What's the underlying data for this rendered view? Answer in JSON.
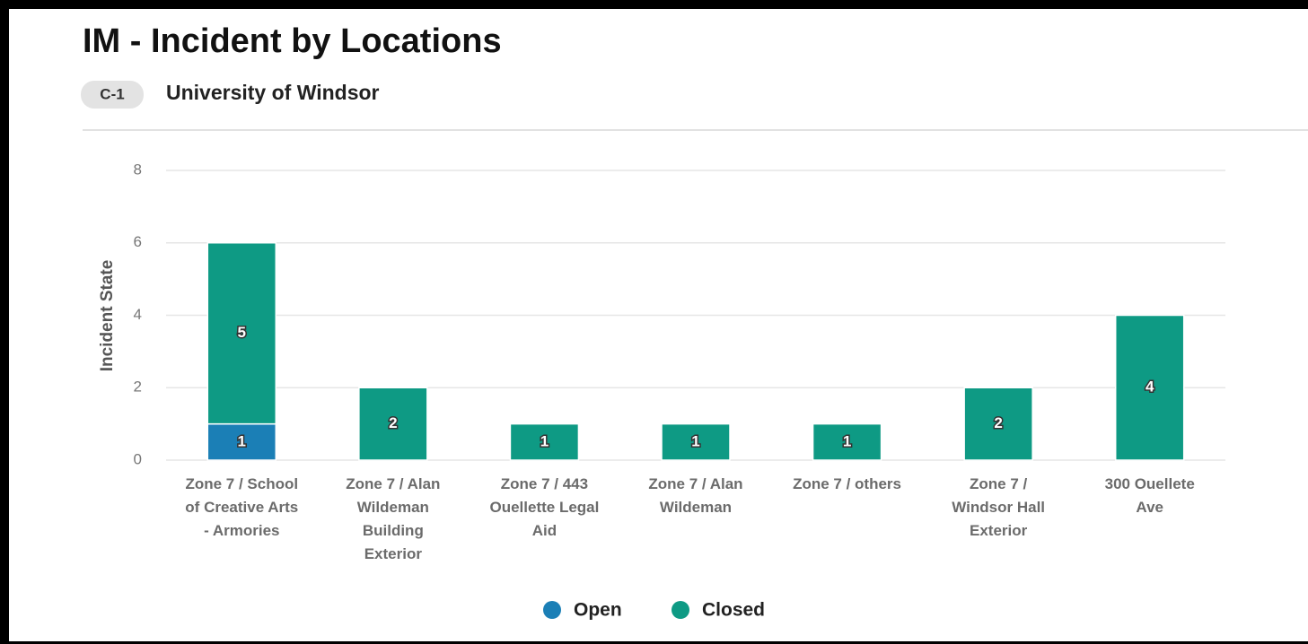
{
  "header": {
    "title": "IM - Incident by Locations",
    "badge": "C-1",
    "subtitle": "University of Windsor"
  },
  "chart_data": {
    "type": "stacked_bar",
    "y_label": "Incident State",
    "categories": [
      "Zone 7 / School of Creative Arts - Armories",
      "Zone 7 / Alan Wildeman Building Exterior",
      "Zone 7 / 443 Ouellette Legal Aid",
      "Zone 7 / Alan Wildeman",
      "Zone 7 / others",
      "Zone 7 / Windsor Hall Exterior",
      "300 Ouellete Ave"
    ],
    "series": [
      {
        "name": "Open",
        "color": "#1b7fb6",
        "values": [
          1,
          0,
          0,
          0,
          0,
          0,
          0
        ]
      },
      {
        "name": "Closed",
        "color": "#0e9a84",
        "values": [
          5,
          2,
          1,
          1,
          1,
          2,
          4
        ]
      }
    ],
    "ylim": [
      0,
      8
    ],
    "yticks": [
      0,
      2,
      4,
      6,
      8
    ],
    "grid": true,
    "legend": "bottom"
  }
}
